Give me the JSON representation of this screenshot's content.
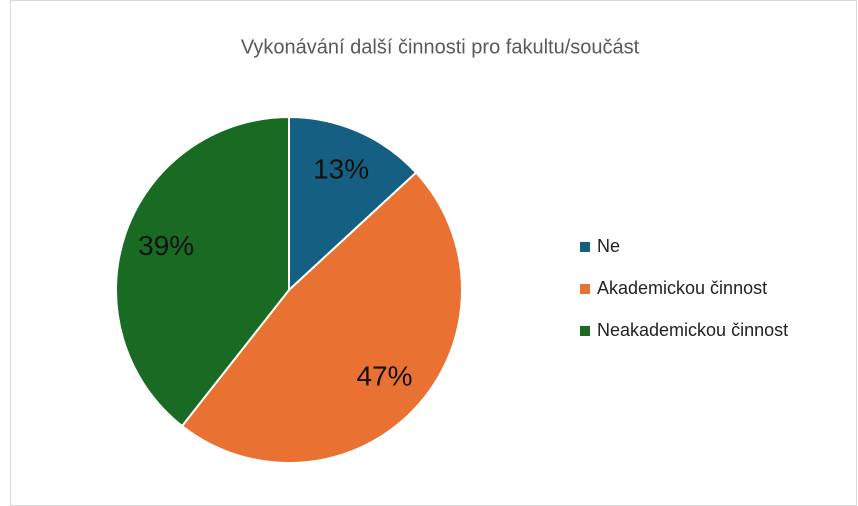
{
  "chart_data": {
    "type": "pie",
    "title": "Vykonávání další činnosti pro fakultu/součást",
    "categories": [
      "Ne",
      "Akademickou činnost",
      "Neakademickou činnost"
    ],
    "values": [
      13,
      47,
      39
    ],
    "value_labels": [
      "13%",
      "47%",
      "39%"
    ],
    "colors": [
      "#156082",
      "#e97132",
      "#196b24"
    ],
    "legend": "right"
  }
}
